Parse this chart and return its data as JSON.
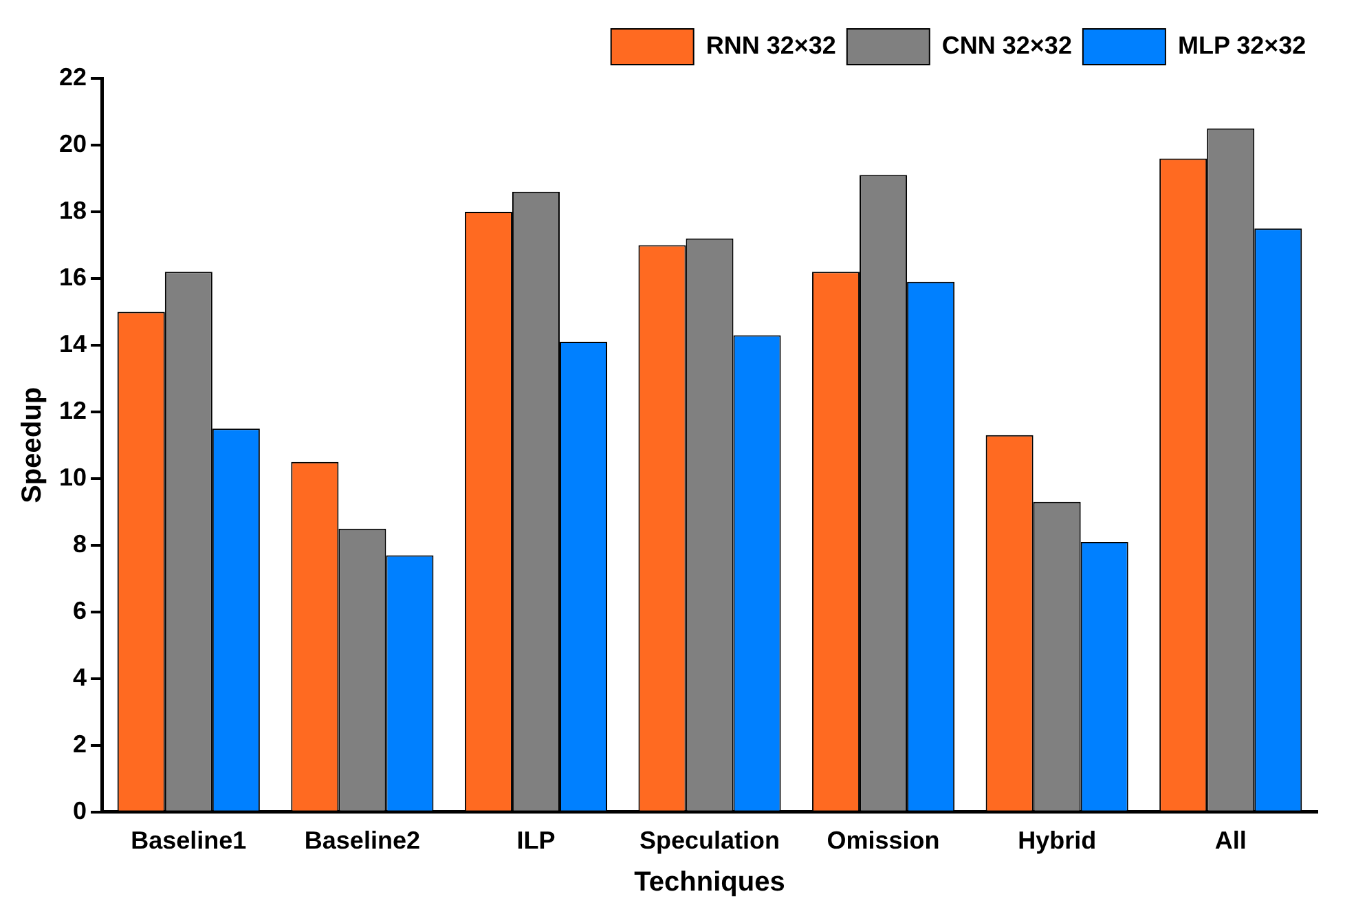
{
  "chart_data": {
    "type": "bar",
    "xlabel": "Techniques",
    "ylabel": "Speedup",
    "categories": [
      "Baseline1",
      "Baseline2",
      "ILP",
      "Speculation",
      "Omission",
      "Hybrid",
      "All"
    ],
    "series": [
      {
        "name": "RNN 32×32",
        "color": "#ff6a21",
        "values": [
          15.0,
          10.5,
          18.0,
          17.0,
          16.2,
          11.3,
          19.6
        ]
      },
      {
        "name": "CNN 32×32",
        "color": "#808080",
        "values": [
          16.2,
          8.5,
          18.6,
          17.2,
          19.1,
          9.3,
          20.5
        ]
      },
      {
        "name": "MLP 32×32",
        "color": "#0080ff",
        "values": [
          11.5,
          7.7,
          14.1,
          14.3,
          15.9,
          8.1,
          17.5
        ]
      }
    ],
    "ylim": [
      0,
      22
    ],
    "yticks": [
      0,
      2,
      4,
      6,
      8,
      10,
      12,
      14,
      16,
      18,
      20,
      22
    ],
    "grid": false,
    "legend": "top right"
  }
}
